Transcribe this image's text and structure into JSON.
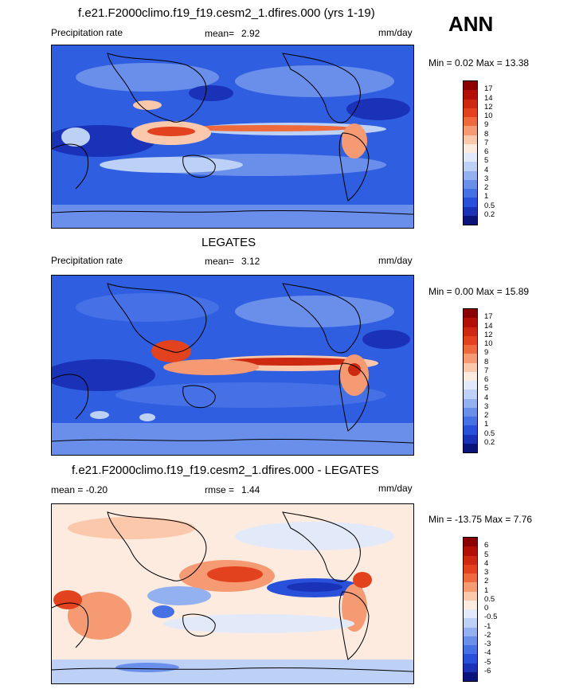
{
  "season": "ANN",
  "panels": [
    {
      "title": "f.e21.F2000climo.f19_f19.cesm2_1.dfires.000 (yrs 1-19)",
      "left_label": "Precipitation rate",
      "stat_label": "mean=",
      "stat_value": "2.92",
      "units": "mm/day",
      "range_text": "Min =   0.02 Max =  13.38",
      "colorbar": {
        "levels": [
          "17",
          "14",
          "12",
          "10",
          "9",
          "8",
          "7",
          "6",
          "5",
          "4",
          "3",
          "2",
          "1",
          "0.5",
          "0.2"
        ],
        "colors": [
          "#8b0000",
          "#b01006",
          "#cd2810",
          "#e2431e",
          "#ee6a3c",
          "#f59a72",
          "#fbc8ac",
          "#fdebe0",
          "#e2eafa",
          "#bdd0f6",
          "#93b1f0",
          "#6a8fea",
          "#4670e6",
          "#2850d8",
          "#1a32b8",
          "#0a147a"
        ]
      }
    },
    {
      "title": "LEGATES",
      "left_label": "Precipitation rate",
      "stat_label": "mean=",
      "stat_value": "3.12",
      "units": "mm/day",
      "range_text": "Min =   0.00 Max =  15.89",
      "colorbar": {
        "levels": [
          "17",
          "14",
          "12",
          "10",
          "9",
          "8",
          "7",
          "6",
          "5",
          "4",
          "3",
          "2",
          "1",
          "0.5",
          "0.2"
        ],
        "colors": [
          "#8b0000",
          "#b01006",
          "#cd2810",
          "#e2431e",
          "#ee6a3c",
          "#f59a72",
          "#fbc8ac",
          "#fdebe0",
          "#e2eafa",
          "#bdd0f6",
          "#93b1f0",
          "#6a8fea",
          "#4670e6",
          "#2850d8",
          "#1a32b8",
          "#0a147a"
        ]
      }
    },
    {
      "title": "f.e21.F2000climo.f19_f19.cesm2_1.dfires.000 - LEGATES",
      "left_label": "mean =  -0.20",
      "stat_label": "rmse =",
      "stat_value": "1.44",
      "units": "mm/day",
      "range_text": "Min = -13.75 Max =   7.76",
      "colorbar": {
        "levels": [
          "6",
          "5",
          "4",
          "3",
          "2",
          "1",
          "0.5",
          "0",
          "-0.5",
          "-1",
          "-2",
          "-3",
          "-4",
          "-5",
          "-6"
        ],
        "colors": [
          "#8b0000",
          "#b01006",
          "#cd2810",
          "#e2431e",
          "#ee6a3c",
          "#f59a72",
          "#fbc8ac",
          "#fdebe0",
          "#e2eafa",
          "#bdd0f6",
          "#93b1f0",
          "#6a8fea",
          "#4670e6",
          "#2850d8",
          "#1a32b8",
          "#0a147a"
        ]
      }
    }
  ],
  "map_colors": {
    "ocean_base": "#2f5fe0",
    "dry_deep": "#1a32b8",
    "moderate": "#6a8fea",
    "light": "#bdd0f6",
    "wet": "#ee6a3c",
    "very_wet": "#cd2810",
    "diff_base": "#fdebe0",
    "diff_pos": "#f59a72",
    "diff_pos_strong": "#e2431e",
    "diff_neg": "#bdd0f6",
    "diff_neg_strong": "#1a32b8"
  }
}
